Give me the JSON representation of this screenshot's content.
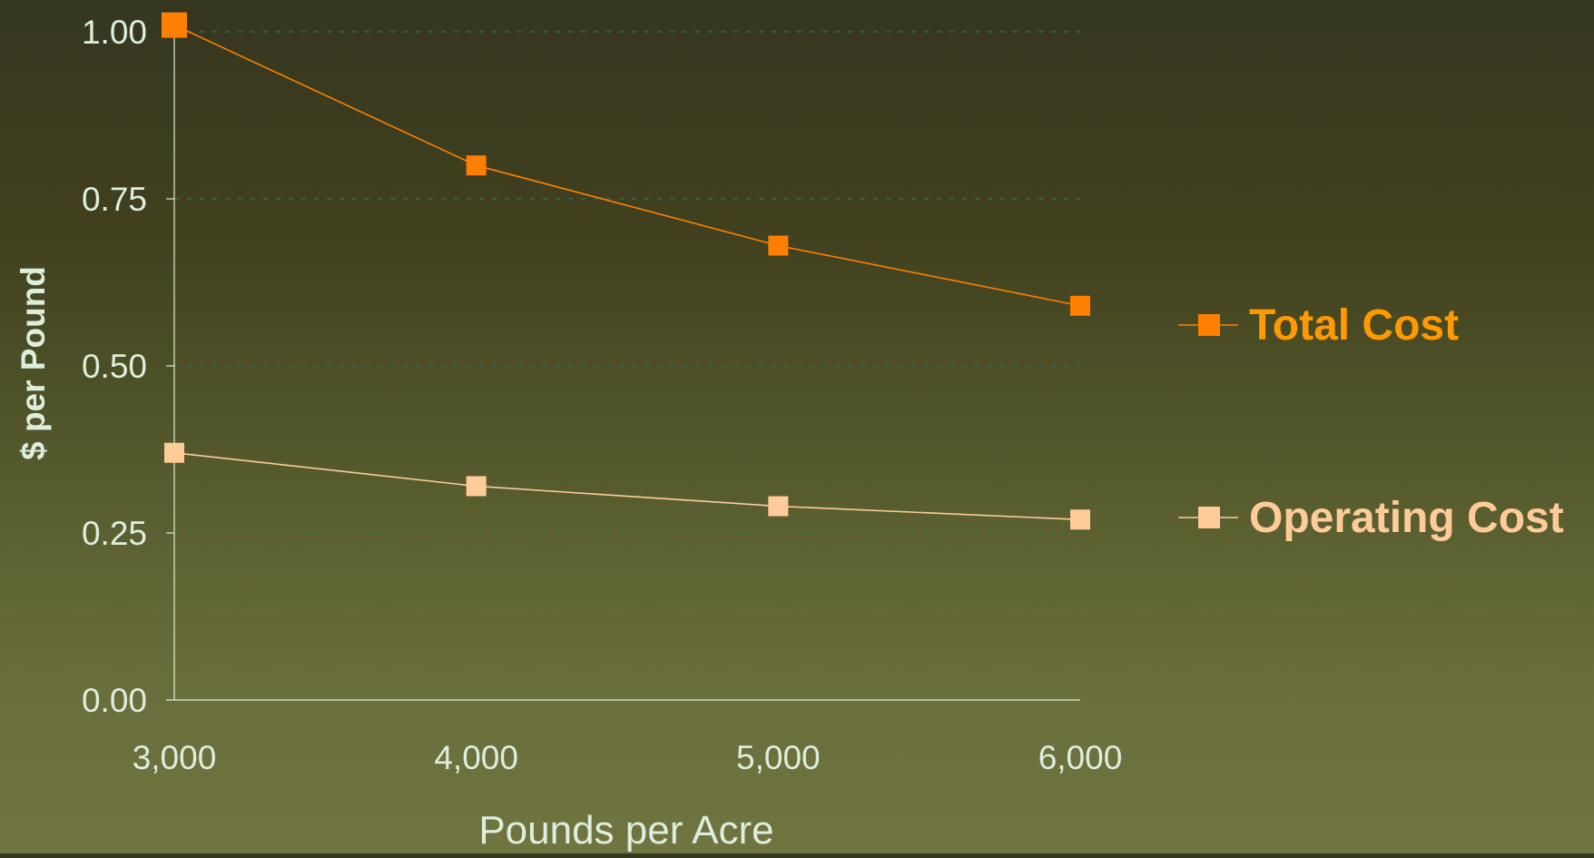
{
  "chart_data": {
    "type": "line",
    "title": "",
    "xlabel": "Pounds per Acre",
    "ylabel": "$ per Pound",
    "x": [
      3000,
      4000,
      5000,
      6000
    ],
    "x_tick_labels": [
      "3,000",
      "4,000",
      "5,000",
      "6,000"
    ],
    "ylim": [
      0,
      1.0
    ],
    "y_ticks": [
      0.0,
      0.25,
      0.5,
      0.75,
      1.0
    ],
    "y_tick_labels": [
      "0.00",
      "0.25",
      "0.50",
      "0.75",
      "1.00"
    ],
    "grid": "horizontal dashed",
    "legend_position": "right",
    "series": [
      {
        "name": "Total Cost",
        "values": [
          1.01,
          0.8,
          0.68,
          0.59
        ],
        "color": "#ff7f00",
        "marker": "square"
      },
      {
        "name": "Operating Cost",
        "values": [
          0.37,
          0.32,
          0.29,
          0.27
        ],
        "color": "#ffcc99",
        "marker": "square"
      }
    ]
  },
  "colors": {
    "axis_text": "#ddeedd",
    "axis_title": "#ddeedd",
    "axis_line": "#e0ecd0",
    "grid": "#2f6a55",
    "legend_total": "#ff9900",
    "legend_operating": "#ffcc99"
  }
}
